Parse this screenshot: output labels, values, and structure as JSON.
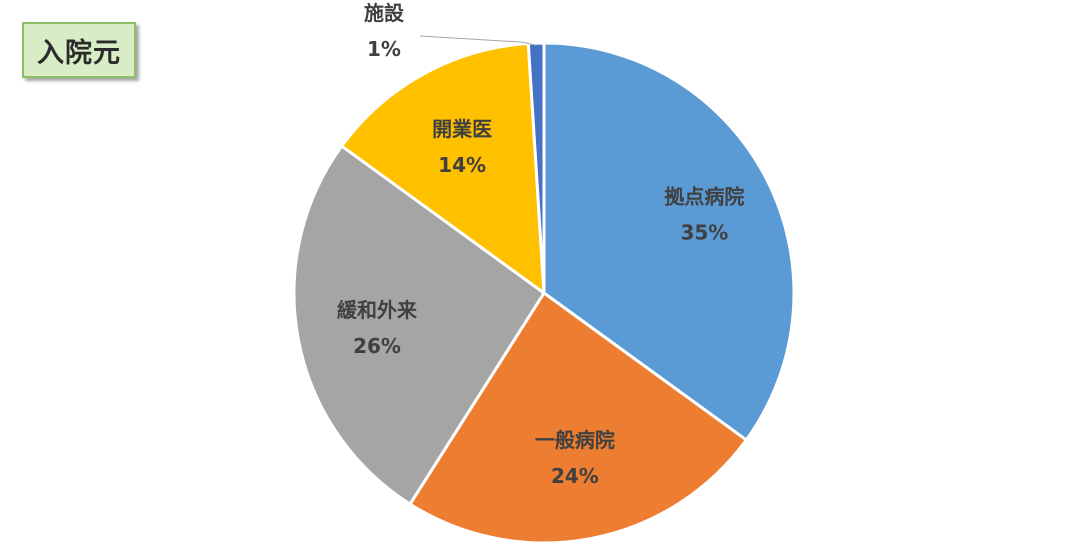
{
  "title": "入院元",
  "chart_data": {
    "type": "pie",
    "slices": [
      {
        "label": "拠点病院",
        "value": 35,
        "pct_text": "35%",
        "color": "#5b9bd5"
      },
      {
        "label": "一般病院",
        "value": 24,
        "pct_text": "24%",
        "color": "#ed7d31"
      },
      {
        "label": "緩和外来",
        "value": 26,
        "pct_text": "26%",
        "color": "#a5a5a5"
      },
      {
        "label": "開業医",
        "value": 14,
        "pct_text": "14%",
        "color": "#ffc000"
      },
      {
        "label": "施設",
        "value": 1,
        "pct_text": "1%",
        "color": "#4472c4"
      }
    ]
  }
}
